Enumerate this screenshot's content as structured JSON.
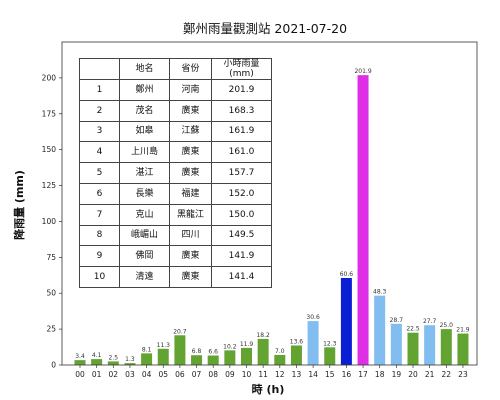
{
  "chart_data": {
    "type": "bar",
    "title": "鄭州雨量觀測站 2021-07-20",
    "xlabel": "時 (h)",
    "ylabel": "降雨量 (mm)",
    "ylim": [
      0,
      225
    ],
    "yticks": [
      "0",
      "25",
      "50",
      "75",
      "100",
      "125",
      "150",
      "175",
      "200"
    ],
    "ytick_values": [
      0,
      25,
      50,
      75,
      100,
      125,
      150,
      175,
      200
    ],
    "grid": false,
    "categories": [
      "00",
      "01",
      "02",
      "03",
      "04",
      "05",
      "06",
      "07",
      "08",
      "09",
      "10",
      "11",
      "12",
      "13",
      "14",
      "15",
      "16",
      "17",
      "18",
      "19",
      "20",
      "21",
      "22",
      "23"
    ],
    "values": [
      3.4,
      4.1,
      2.5,
      1.3,
      8.1,
      11.3,
      20.7,
      6.8,
      6.6,
      10.2,
      11.9,
      18.2,
      7.0,
      13.6,
      30.6,
      12.3,
      60.6,
      201.9,
      48.3,
      28.7,
      22.5,
      27.7,
      25.0,
      21.9
    ],
    "labels": [
      "3.4",
      "4.1",
      "2.5",
      "1.3",
      "8.1",
      "11.3",
      "20.7",
      "6.8",
      "6.6",
      "10.2",
      "11.9",
      "18.2",
      "7.0",
      "13.6",
      "30.6",
      "12.3",
      "60.6",
      "201.9",
      "48.3",
      "28.7",
      "22.5",
      "27.7",
      "25.0",
      "21.9"
    ],
    "colors": [
      "#63a332",
      "#63a332",
      "#63a332",
      "#63a332",
      "#63a332",
      "#63a332",
      "#63a332",
      "#63a332",
      "#63a332",
      "#63a332",
      "#63a332",
      "#63a332",
      "#63a332",
      "#63a332",
      "#82bdf0",
      "#63a332",
      "#0a1ed6",
      "#e02ee6",
      "#82bdf0",
      "#82bdf0",
      "#63a332",
      "#82bdf0",
      "#63a332",
      "#63a332"
    ],
    "table": {
      "headers": [
        "",
        "地名",
        "省份",
        "小時雨量\n(mm)"
      ],
      "rows": [
        [
          "1",
          "鄭州",
          "河南",
          "201.9"
        ],
        [
          "2",
          "茂名",
          "廣東",
          "168.3"
        ],
        [
          "3",
          "如皋",
          "江蘇",
          "161.9"
        ],
        [
          "4",
          "上川島",
          "廣東",
          "161.0"
        ],
        [
          "5",
          "湛江",
          "廣東",
          "157.7"
        ],
        [
          "6",
          "長樂",
          "福建",
          "152.0"
        ],
        [
          "7",
          "克山",
          "黑龍江",
          "150.0"
        ],
        [
          "8",
          "峨嵋山",
          "四川",
          "149.5"
        ],
        [
          "9",
          "佛岡",
          "廣東",
          "141.9"
        ],
        [
          "10",
          "清遠",
          "廣東",
          "141.4"
        ]
      ]
    }
  }
}
